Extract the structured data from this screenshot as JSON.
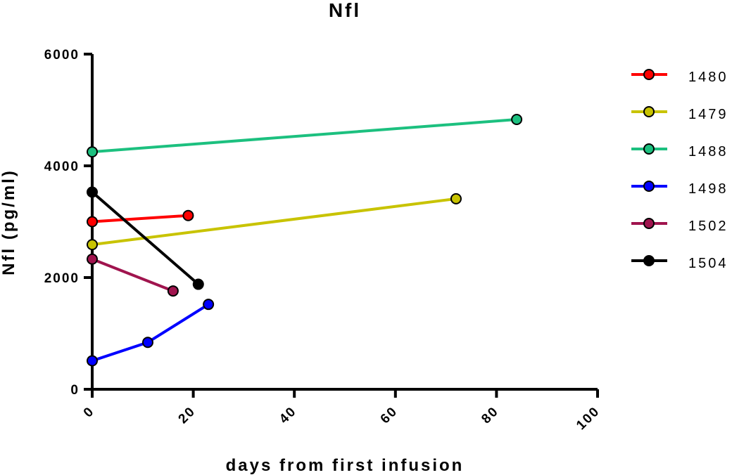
{
  "chart_data": {
    "type": "line",
    "title": "Nfl",
    "xlabel": "days from first infusion",
    "ylabel": "Nfl (pg/ml)",
    "xlim": [
      0,
      100
    ],
    "ylim": [
      0,
      6000
    ],
    "x_ticks": [
      0,
      20,
      40,
      60,
      80,
      100
    ],
    "y_ticks": [
      0,
      2000,
      4000,
      6000
    ],
    "x_tick_labels": [
      "0",
      "20",
      "40",
      "60",
      "80",
      "100"
    ],
    "y_tick_labels": [
      "0",
      "2000",
      "4000",
      "6000"
    ],
    "grid": false,
    "legend_position": "right",
    "series": [
      {
        "name": "1480",
        "color": "#ff0000",
        "x": [
          0,
          19
        ],
        "y": [
          3000,
          3110
        ]
      },
      {
        "name": "1479",
        "color": "#c8c300",
        "x": [
          0,
          72
        ],
        "y": [
          2590,
          3410
        ]
      },
      {
        "name": "1488",
        "color": "#1cc07f",
        "x": [
          0,
          84
        ],
        "y": [
          4250,
          4830
        ]
      },
      {
        "name": "1498",
        "color": "#0000ff",
        "x": [
          0,
          11,
          23
        ],
        "y": [
          510,
          840,
          1520
        ]
      },
      {
        "name": "1502",
        "color": "#a0144e",
        "x": [
          0,
          16
        ],
        "y": [
          2330,
          1760
        ]
      },
      {
        "name": "1504",
        "color": "#000000",
        "x": [
          0,
          21
        ],
        "y": [
          3530,
          1880
        ]
      }
    ]
  }
}
